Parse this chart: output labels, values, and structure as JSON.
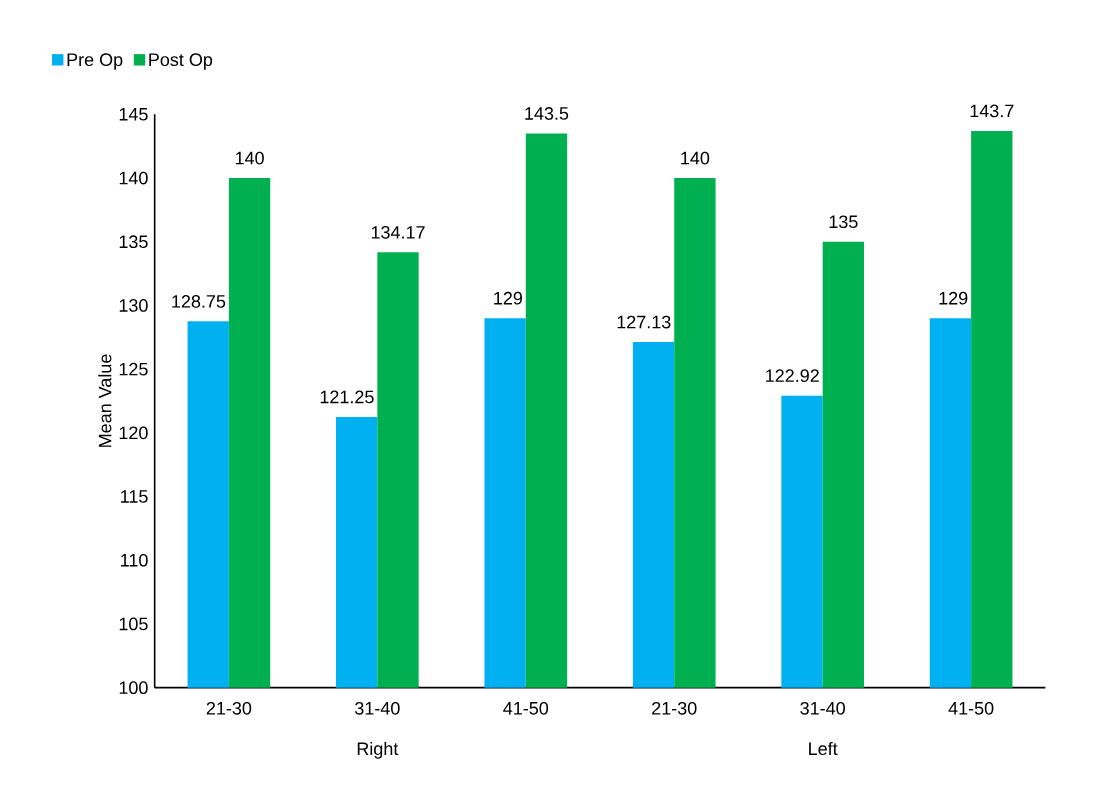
{
  "chart_data": {
    "type": "bar",
    "ylabel": "Mean Value",
    "categories": [
      "21-30",
      "31-40",
      "41-50",
      "21-30",
      "31-40",
      "41-50"
    ],
    "annotations": [
      "Right",
      "Left"
    ],
    "series": [
      {
        "name": "Pre Op",
        "color": "#00b0f0",
        "values": [
          128.75,
          121.25,
          129,
          127.13,
          122.92,
          129
        ],
        "value_labels": [
          "128.75",
          "121.25",
          "129",
          "127.13",
          "122.92",
          "129"
        ]
      },
      {
        "name": "Post Op",
        "color": "#00b050",
        "values": [
          140,
          134.17,
          143.5,
          140,
          135,
          143.7
        ],
        "value_labels": [
          "140",
          "134.17",
          "143.5",
          "140",
          "135",
          "143.7"
        ]
      }
    ],
    "ylim": [
      100,
      145
    ],
    "yticks": [
      100,
      105,
      110,
      115,
      120,
      125,
      130,
      135,
      140,
      145
    ],
    "grid": false,
    "legend": "top left"
  }
}
